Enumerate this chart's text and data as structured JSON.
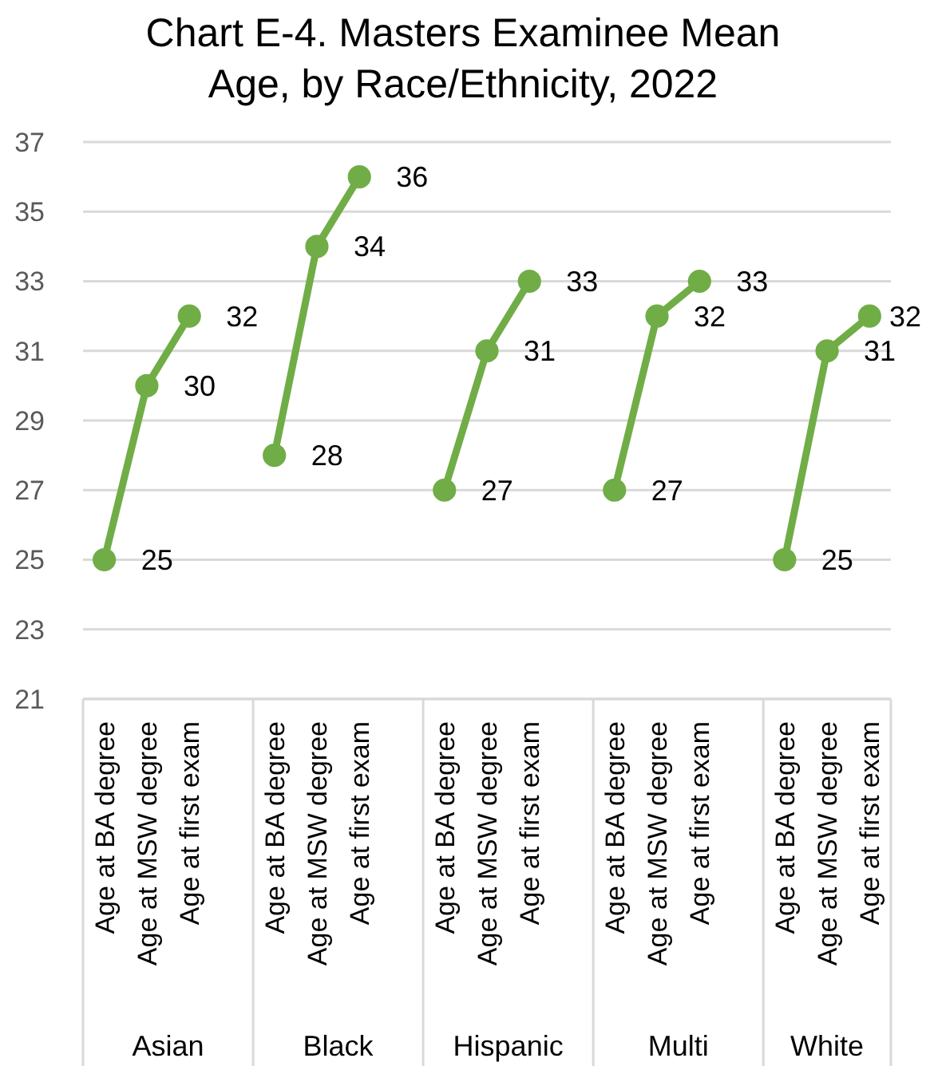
{
  "chart_data": {
    "type": "line",
    "title": "Chart E-4. Masters Examinee Mean Age, by Race/Ethnicity, 2022",
    "categories": [
      "Age at BA degree",
      "Age at MSW degree",
      "Age at first exam",
      null,
      "Age at BA degree",
      "Age at MSW degree",
      "Age at first exam",
      null,
      "Age at BA degree",
      "Age at MSW degree",
      "Age at first exam",
      null,
      "Age at BA degree",
      "Age at MSW degree",
      "Age at first exam",
      null,
      "Age at BA degree",
      "Age at MSW degree",
      "Age at first exam"
    ],
    "values": [
      25,
      30,
      32,
      null,
      28,
      34,
      36,
      null,
      27,
      31,
      33,
      null,
      27,
      32,
      33,
      null,
      25,
      31,
      32
    ],
    "color": "#70ad47",
    "annotations": [
      "Asian",
      "Black",
      "Hispanic",
      "Multi",
      "White"
    ],
    "ylim": [
      21,
      37
    ],
    "yticks": [
      21,
      23,
      25,
      27,
      29,
      31,
      33,
      35,
      37
    ],
    "grid": "y",
    "data_labels": true,
    "marker": "circle",
    "line_style": "solid"
  }
}
